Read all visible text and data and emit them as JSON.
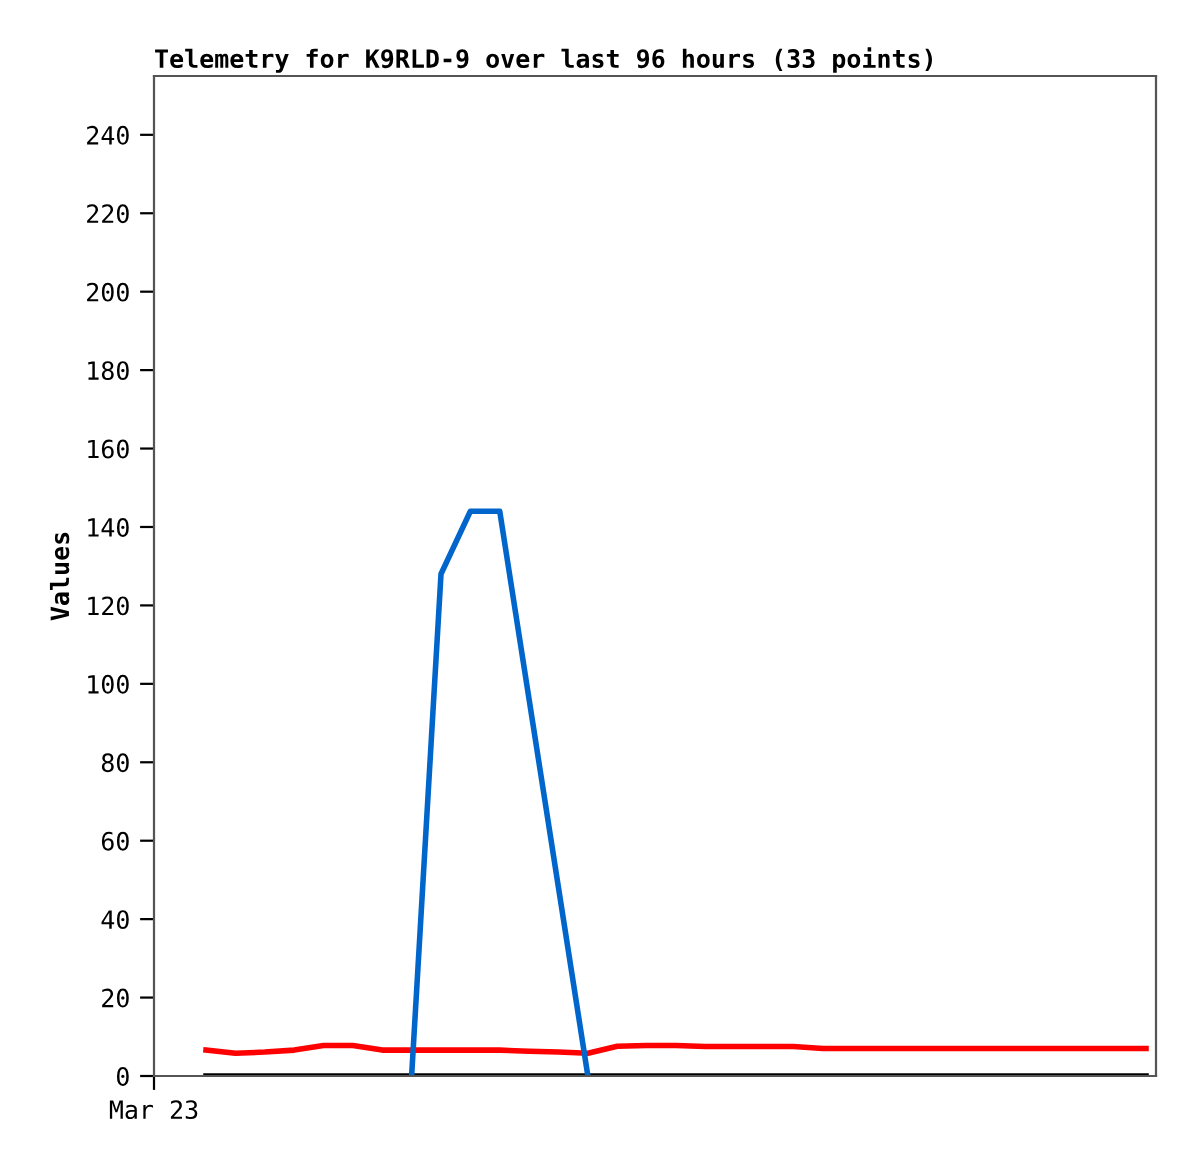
{
  "chart_data": {
    "type": "line",
    "title": "Telemetry for K9RLD-9 over last 96 hours (33 points)",
    "ylabel": "Values",
    "annotations": [
      "Mar 23"
    ],
    "categories": [
      null,
      null,
      null,
      null,
      null,
      null,
      null,
      null,
      null,
      null,
      null,
      null,
      null,
      null,
      null,
      null,
      null,
      null,
      null,
      null,
      null,
      null,
      null,
      null,
      null,
      null,
      null,
      null,
      null,
      null,
      null,
      null,
      null
    ],
    "ylim": [
      0,
      255
    ],
    "yticks": [
      0,
      20,
      40,
      60,
      80,
      100,
      120,
      140,
      160,
      180,
      200,
      220,
      240
    ],
    "marker": "none",
    "line_style": "solid",
    "series": [
      {
        "color": "#000000",
        "values": [
          0,
          0,
          0,
          0,
          0,
          0,
          0,
          0,
          0,
          0,
          0,
          0,
          0,
          0,
          0,
          0,
          0,
          0,
          0,
          0,
          0,
          0,
          0,
          0,
          0,
          0,
          0,
          0,
          0,
          0,
          0,
          0,
          0
        ]
      },
      {
        "color": "#ff0000",
        "values": [
          6.6,
          5.8,
          6.1,
          6.6,
          7.8,
          7.8,
          6.6,
          6.6,
          6.6,
          6.6,
          6.6,
          6.3,
          6.1,
          5.8,
          7.6,
          7.8,
          7.8,
          7.5,
          7.5,
          7.5,
          7.5,
          7.0,
          7.0,
          7.0,
          7.0,
          7.0,
          7.0,
          7.0,
          7.0,
          7.0,
          7.0,
          7.0,
          7.0
        ]
      },
      {
        "color": "#0066cc",
        "values": [
          null,
          null,
          null,
          null,
          null,
          null,
          null,
          0,
          128,
          144,
          144,
          96,
          48,
          0,
          null,
          null,
          null,
          null,
          null,
          null,
          null,
          null,
          null,
          null,
          null,
          null,
          null,
          null,
          null,
          null,
          null,
          null,
          null
        ]
      }
    ]
  }
}
